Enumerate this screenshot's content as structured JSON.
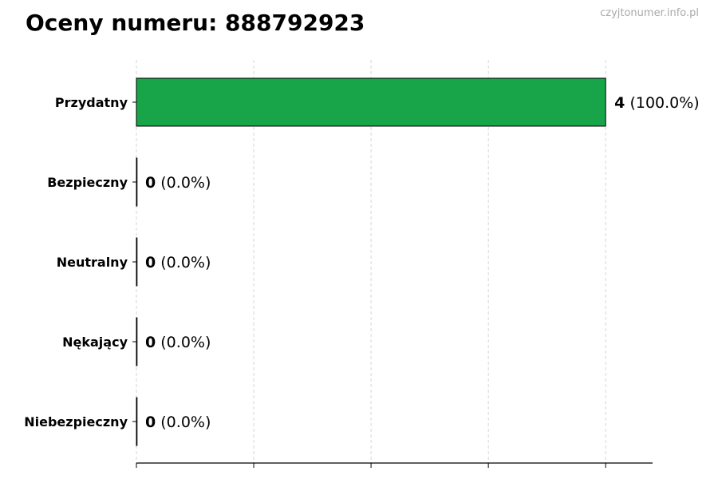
{
  "title": "Oceny numeru: 888792923",
  "watermark": "czyjtonumer.info.pl",
  "colors": {
    "bar": "#18a54a",
    "grid": "#cccccc"
  },
  "chart_data": {
    "type": "bar",
    "orientation": "horizontal",
    "title": "Oceny numeru: 888792923",
    "categories": [
      "Przydatny",
      "Bezpieczny",
      "Neutralny",
      "Nękający",
      "Niebezpieczny"
    ],
    "values": [
      4,
      0,
      0,
      0,
      0
    ],
    "percent_labels": [
      "(100.0%)",
      "(0.0%)",
      "(0.0%)",
      "(0.0%)",
      "(0.0%)"
    ],
    "xlim": [
      0,
      4.4
    ],
    "xticks": [
      0,
      1,
      2,
      3,
      4
    ],
    "xtick_labels_visible": false,
    "grid": "x-dashed",
    "xlabel": "",
    "ylabel": ""
  }
}
